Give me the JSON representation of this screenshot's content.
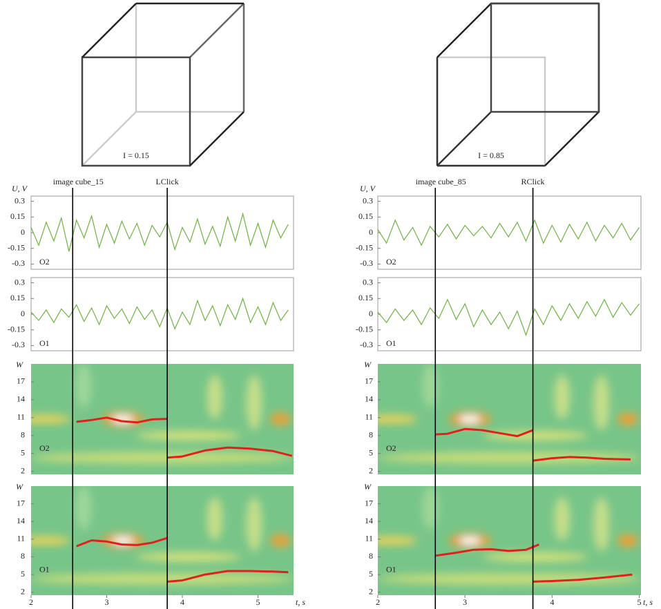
{
  "columns": [
    {
      "cube_label": "I = 0.15",
      "events": [
        {
          "label": "image cube_15",
          "x": 2.55
        },
        {
          "label": "LClick",
          "x": 3.8
        }
      ],
      "chart_data": [
        {
          "type": "line",
          "ylabel": "U, V",
          "channel": "O2",
          "color": "#6db33f",
          "xlim": [
            2,
            5.47
          ],
          "ylim": [
            -0.35,
            0.35
          ],
          "yticks": [
            0.3,
            0.15,
            0,
            -0.15,
            -0.3
          ],
          "x": [
            2,
            2.1,
            2.2,
            2.3,
            2.4,
            2.5,
            2.6,
            2.7,
            2.8,
            2.9,
            3,
            3.1,
            3.2,
            3.3,
            3.4,
            3.5,
            3.6,
            3.7,
            3.8,
            3.9,
            4,
            4.1,
            4.2,
            4.3,
            4.4,
            4.5,
            4.6,
            4.7,
            4.8,
            4.9,
            5,
            5.1,
            5.2,
            5.3,
            5.4
          ],
          "values": [
            0.05,
            -0.12,
            0.1,
            -0.08,
            0.14,
            -0.18,
            0.12,
            -0.05,
            0.16,
            -0.14,
            0.08,
            -0.1,
            0.11,
            -0.06,
            0.09,
            -0.12,
            0.07,
            -0.04,
            0.1,
            -0.16,
            0.05,
            -0.09,
            0.13,
            -0.11,
            0.06,
            -0.13,
            0.15,
            -0.08,
            0.18,
            -0.12,
            0.09,
            -0.14,
            0.12,
            -0.05,
            0.08
          ]
        },
        {
          "type": "line",
          "channel": "O1",
          "color": "#6db33f",
          "xlim": [
            2,
            5.47
          ],
          "ylim": [
            -0.35,
            0.35
          ],
          "yticks": [
            0.3,
            0.15,
            0,
            -0.15,
            -0.3
          ],
          "x": [
            2,
            2.1,
            2.2,
            2.3,
            2.4,
            2.5,
            2.6,
            2.7,
            2.8,
            2.9,
            3,
            3.1,
            3.2,
            3.3,
            3.4,
            3.5,
            3.6,
            3.7,
            3.8,
            3.9,
            4,
            4.1,
            4.2,
            4.3,
            4.4,
            4.5,
            4.6,
            4.7,
            4.8,
            4.9,
            5,
            5.1,
            5.2,
            5.3,
            5.4
          ],
          "values": [
            0.02,
            -0.06,
            0.04,
            -0.08,
            0.05,
            -0.03,
            0.09,
            -0.07,
            0.06,
            -0.1,
            0.08,
            -0.04,
            0.05,
            -0.09,
            0.07,
            -0.05,
            0.04,
            -0.12,
            0.06,
            -0.14,
            0.02,
            -0.1,
            0.13,
            -0.06,
            0.08,
            -0.11,
            0.09,
            -0.05,
            0.15,
            -0.08,
            0.07,
            -0.1,
            0.11,
            -0.06,
            0.04
          ]
        },
        {
          "type": "ridge",
          "ylabel": "W",
          "channel": "O2",
          "color": "#e0201b",
          "xlim": [
            2,
            5.47
          ],
          "ylim": [
            1.5,
            20
          ],
          "yticks": [
            17,
            14,
            11,
            8,
            5,
            2
          ],
          "series": [
            {
              "x": [
                2.6,
                2.8,
                3,
                3.2,
                3.4,
                3.6,
                3.8
              ],
              "values": [
                10.3,
                10.6,
                11,
                10.4,
                10.2,
                10.7,
                10.8
              ]
            },
            {
              "x": [
                3.8,
                4,
                4.3,
                4.6,
                4.9,
                5.2,
                5.45
              ],
              "values": [
                4.3,
                4.5,
                5.5,
                6,
                5.8,
                5.4,
                4.6
              ]
            }
          ]
        },
        {
          "type": "ridge",
          "ylabel": "W",
          "channel": "O1",
          "color": "#e0201b",
          "xlim": [
            2,
            5.47
          ],
          "ylim": [
            1.5,
            20
          ],
          "yticks": [
            17,
            14,
            11,
            8,
            5,
            2
          ],
          "xticks": [
            2,
            3,
            4,
            5
          ],
          "xlabel": "t, s",
          "series": [
            {
              "x": [
                2.6,
                2.8,
                3,
                3.2,
                3.4,
                3.6,
                3.8
              ],
              "values": [
                9.8,
                10.8,
                10.6,
                10.1,
                10,
                10.4,
                11.2
              ]
            },
            {
              "x": [
                3.8,
                4,
                4.3,
                4.6,
                4.9,
                5.2,
                5.4
              ],
              "values": [
                3.8,
                4,
                5,
                5.6,
                5.6,
                5.5,
                5.4
              ]
            }
          ]
        }
      ]
    },
    {
      "cube_label": "I = 0.85",
      "events": [
        {
          "label": "image cube_85",
          "x": 2.66
        },
        {
          "label": "RClick",
          "x": 3.78
        }
      ],
      "chart_data": [
        {
          "type": "line",
          "ylabel": "U, V",
          "channel": "O2",
          "color": "#6db33f",
          "xlim": [
            2,
            5.02
          ],
          "ylim": [
            -0.35,
            0.35
          ],
          "yticks": [
            0.3,
            0.15,
            0,
            -0.15,
            -0.3
          ],
          "x": [
            2,
            2.1,
            2.2,
            2.3,
            2.4,
            2.5,
            2.6,
            2.7,
            2.8,
            2.9,
            3,
            3.1,
            3.2,
            3.3,
            3.4,
            3.5,
            3.6,
            3.7,
            3.8,
            3.9,
            4,
            4.1,
            4.2,
            4.3,
            4.4,
            4.5,
            4.6,
            4.7,
            4.8,
            4.9,
            5
          ],
          "values": [
            0.03,
            -0.1,
            0.12,
            -0.07,
            0.05,
            -0.12,
            0.06,
            -0.04,
            0.08,
            -0.06,
            0.07,
            -0.03,
            0.06,
            -0.05,
            0.09,
            -0.04,
            0.1,
            -0.08,
            0.12,
            -0.1,
            0.07,
            -0.09,
            0.08,
            -0.06,
            0.1,
            -0.08,
            0.07,
            -0.05,
            0.09,
            -0.07,
            0.05
          ]
        },
        {
          "type": "line",
          "channel": "O1",
          "color": "#6db33f",
          "xlim": [
            2,
            5.02
          ],
          "ylim": [
            -0.35,
            0.35
          ],
          "yticks": [
            0.3,
            0.15,
            0,
            -0.15,
            -0.3
          ],
          "x": [
            2,
            2.1,
            2.2,
            2.3,
            2.4,
            2.5,
            2.6,
            2.7,
            2.8,
            2.9,
            3,
            3.1,
            3.2,
            3.3,
            3.4,
            3.5,
            3.6,
            3.7,
            3.8,
            3.9,
            4,
            4.1,
            4.2,
            4.3,
            4.4,
            4.5,
            4.6,
            4.7,
            4.8,
            4.9,
            5
          ],
          "values": [
            0.02,
            -0.08,
            0.05,
            -0.06,
            0.04,
            -0.1,
            0.06,
            -0.04,
            0.14,
            -0.05,
            0.1,
            -0.12,
            0.04,
            -0.1,
            0.02,
            -0.14,
            0.03,
            -0.2,
            0.05,
            -0.1,
            0.08,
            -0.06,
            0.1,
            -0.04,
            0.12,
            -0.02,
            0.14,
            -0.03,
            0.11,
            -0.01,
            0.1
          ]
        },
        {
          "type": "ridge",
          "ylabel": "W",
          "channel": "O2",
          "color": "#e0201b",
          "xlim": [
            2,
            5.02
          ],
          "ylim": [
            1.5,
            20
          ],
          "yticks": [
            17,
            14,
            11,
            8,
            5,
            2
          ],
          "series": [
            {
              "x": [
                2.66,
                2.8,
                3,
                3.2,
                3.4,
                3.6,
                3.78
              ],
              "values": [
                8.2,
                8.3,
                9.1,
                8.9,
                8.4,
                7.9,
                8.9
              ]
            },
            {
              "x": [
                3.78,
                4,
                4.2,
                4.4,
                4.6,
                4.9
              ],
              "values": [
                3.8,
                4.2,
                4.4,
                4.3,
                4.1,
                4
              ]
            }
          ]
        },
        {
          "type": "ridge",
          "ylabel": "W",
          "channel": "O1",
          "color": "#e0201b",
          "xlim": [
            2,
            5.02
          ],
          "ylim": [
            1.5,
            20
          ],
          "yticks": [
            17,
            14,
            11,
            8,
            5,
            2
          ],
          "xticks": [
            2,
            3,
            4,
            5
          ],
          "xlabel": "t, s",
          "series": [
            {
              "x": [
                2.66,
                2.9,
                3.1,
                3.3,
                3.5,
                3.7,
                3.85
              ],
              "values": [
                8.2,
                8.7,
                9.2,
                9.3,
                9,
                9.2,
                10.1
              ]
            },
            {
              "x": [
                3.78,
                4,
                4.3,
                4.6,
                4.92
              ],
              "values": [
                3.8,
                3.9,
                4.1,
                4.5,
                5
              ]
            }
          ]
        }
      ]
    }
  ]
}
